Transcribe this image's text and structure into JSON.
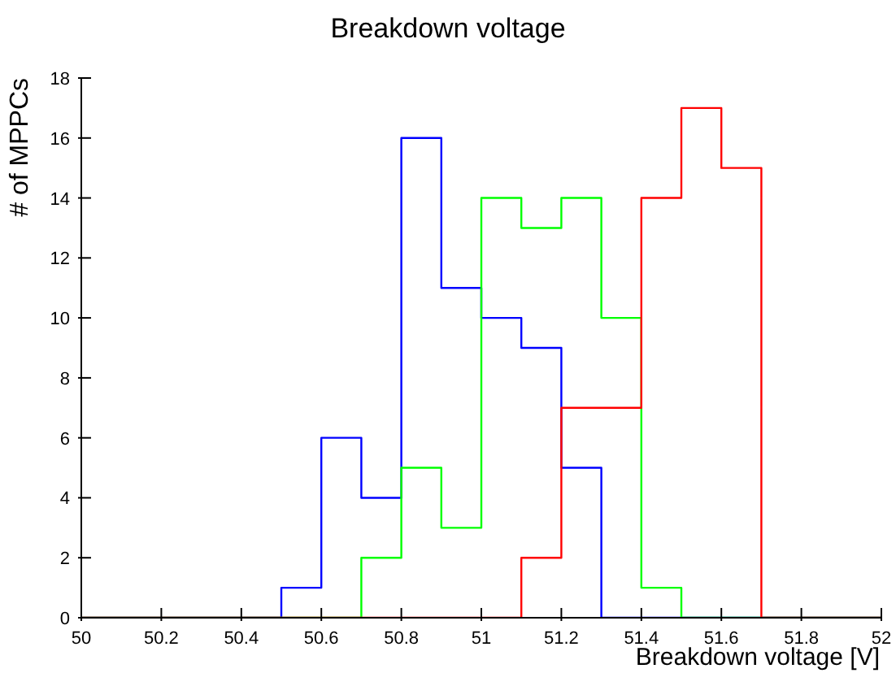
{
  "chart_data": {
    "type": "histogram",
    "title": "Breakdown voltage",
    "xlabel": "Breakdown voltage [V]",
    "ylabel": "# of MPPCs",
    "bins": [
      50,
      50.1,
      50.2,
      50.3,
      50.4,
      50.5,
      50.6,
      50.7,
      50.8,
      50.9,
      51,
      51.1,
      51.2,
      51.3,
      51.4,
      51.5,
      51.6,
      51.7,
      51.8,
      51.9,
      52
    ],
    "series": [
      {
        "color": "#0000ff",
        "values": [
          0,
          0,
          0,
          0,
          0,
          1,
          6,
          4,
          16,
          11,
          10,
          9,
          5,
          0,
          0,
          0,
          0,
          0,
          0,
          0
        ]
      },
      {
        "color": "#00ff00",
        "values": [
          0,
          0,
          0,
          0,
          0,
          0,
          0,
          2,
          5,
          3,
          14,
          13,
          14,
          10,
          1,
          0,
          0,
          0,
          0,
          0
        ]
      },
      {
        "color": "#ff0000",
        "values": [
          0,
          0,
          0,
          0,
          0,
          0,
          0,
          0,
          0,
          0,
          0,
          2,
          7,
          7,
          14,
          17,
          15,
          0,
          0,
          0
        ]
      }
    ],
    "xlim": [
      50,
      52
    ],
    "xticks": [
      50,
      50.2,
      50.4,
      50.6,
      50.8,
      51,
      51.2,
      51.4,
      51.6,
      51.8,
      52
    ],
    "ylim": [
      0,
      18
    ],
    "yticks": [
      0,
      2,
      4,
      6,
      8,
      10,
      12,
      14,
      16,
      18
    ]
  }
}
